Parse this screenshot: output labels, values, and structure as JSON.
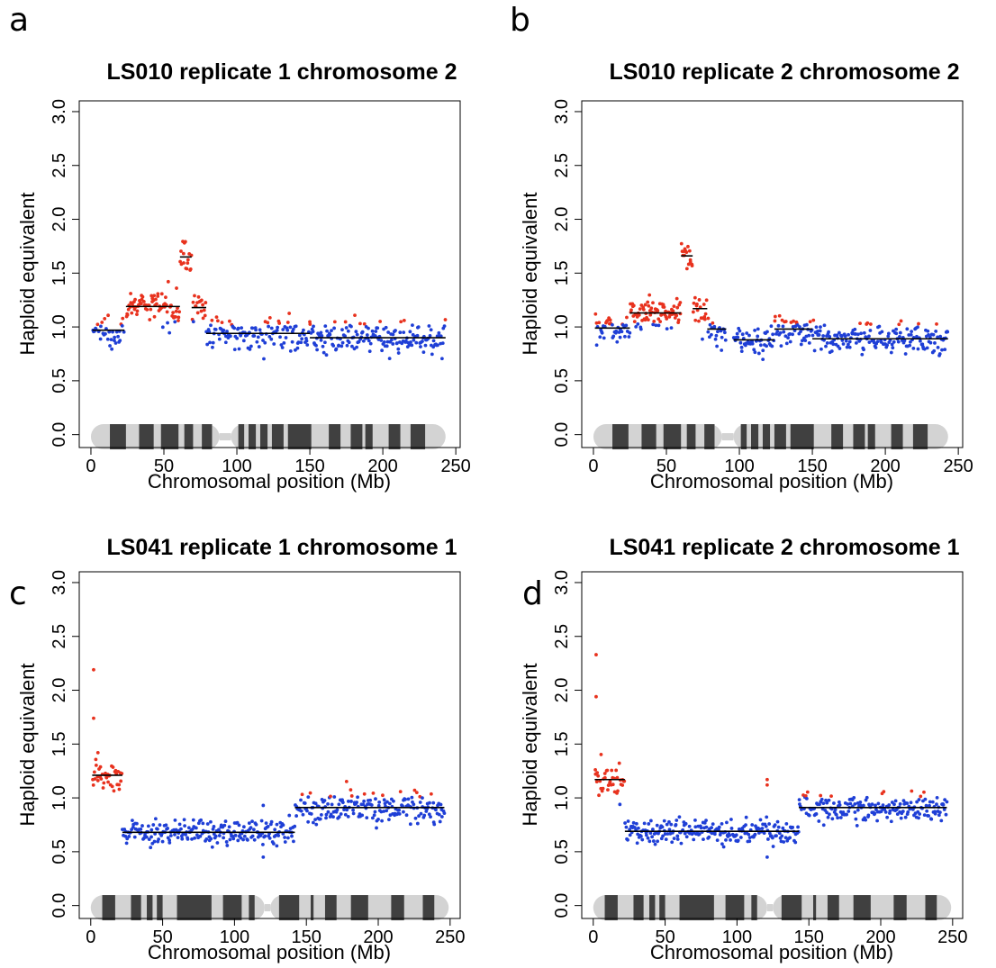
{
  "colors": {
    "gain": "#e8321e",
    "normal": "#1f3fd6",
    "segment": "#000000",
    "band_dark": "#404040",
    "band_light": "#d3d3d3"
  },
  "chart_data": [
    {
      "panel": "a",
      "type": "scatter",
      "title": "LS010 replicate 1 chromosome 2",
      "xlabel": "Chromosomal position (Mb)",
      "ylabel": "Haploid equivalent",
      "xticks": [
        0,
        50,
        100,
        150,
        200,
        250
      ],
      "yticks": [
        "0.0",
        "0.5",
        "1.0",
        "1.5",
        "2.0",
        "2.5",
        "3.0"
      ],
      "xlim": [
        -8,
        253
      ],
      "ylim": [
        -0.12,
        3.1
      ],
      "chrom_length": 243,
      "centromere": [
        88,
        96
      ],
      "bands": [
        [
          13,
          24
        ],
        [
          33,
          43
        ],
        [
          48,
          60
        ],
        [
          64,
          70
        ],
        [
          76,
          83
        ],
        [
          101,
          105
        ],
        [
          108,
          113
        ],
        [
          116,
          121
        ],
        [
          124,
          132
        ],
        [
          135,
          151
        ],
        [
          163,
          171
        ],
        [
          178,
          186
        ],
        [
          188,
          193
        ],
        [
          204,
          212
        ],
        [
          219,
          229
        ]
      ],
      "segments": [
        {
          "x0": 1,
          "x1": 23,
          "y": 0.97,
          "points": 35,
          "sd": 0.07,
          "gain_threshold": 1.02
        },
        {
          "x0": 24,
          "x1": 61,
          "y": 1.19,
          "points": 78,
          "sd": 0.07,
          "gain_threshold": 1.05
        },
        {
          "x0": 61,
          "x1": 69,
          "y": 1.65,
          "points": 16,
          "sd": 0.08,
          "gain_threshold": 1.2
        },
        {
          "x0": 69,
          "x1": 79,
          "y": 1.18,
          "points": 18,
          "sd": 0.07,
          "gain_threshold": 1.05
        },
        {
          "x0": 79,
          "x1": 120,
          "y": 0.94,
          "points": 70,
          "sd": 0.07,
          "gain_threshold": 1.02
        },
        {
          "x0": 120,
          "x1": 150,
          "y": 0.94,
          "points": 50,
          "sd": 0.08,
          "gain_threshold": 1.03
        },
        {
          "x0": 150,
          "x1": 243,
          "y": 0.9,
          "points": 170,
          "sd": 0.07,
          "gain_threshold": 1.02
        }
      ]
    },
    {
      "panel": "b",
      "type": "scatter",
      "title": "LS010 replicate 2 chromosome 2",
      "xlabel": "Chromosomal position (Mb)",
      "ylabel": "Haploid equivalent",
      "xticks": [
        0,
        50,
        100,
        150,
        200,
        250
      ],
      "yticks": [
        "0.0",
        "0.5",
        "1.0",
        "1.5",
        "2.0",
        "2.5",
        "3.0"
      ],
      "xlim": [
        -8,
        253
      ],
      "ylim": [
        -0.12,
        3.1
      ],
      "chrom_length": 243,
      "centromere": [
        88,
        96
      ],
      "bands": [
        [
          13,
          24
        ],
        [
          33,
          43
        ],
        [
          48,
          60
        ],
        [
          64,
          70
        ],
        [
          76,
          83
        ],
        [
          101,
          105
        ],
        [
          108,
          113
        ],
        [
          116,
          121
        ],
        [
          124,
          132
        ],
        [
          135,
          151
        ],
        [
          163,
          171
        ],
        [
          178,
          186
        ],
        [
          188,
          193
        ],
        [
          204,
          212
        ],
        [
          219,
          229
        ]
      ],
      "segments": [
        {
          "x0": 1,
          "x1": 25,
          "y": 0.99,
          "points": 40,
          "sd": 0.08,
          "gain_threshold": 1.02
        },
        {
          "x0": 25,
          "x1": 60,
          "y": 1.13,
          "points": 80,
          "sd": 0.07,
          "gain_threshold": 1.03
        },
        {
          "x0": 60,
          "x1": 68,
          "y": 1.66,
          "points": 16,
          "sd": 0.12,
          "gain_threshold": 1.2
        },
        {
          "x0": 68,
          "x1": 78,
          "y": 1.17,
          "points": 18,
          "sd": 0.08,
          "gain_threshold": 1.05
        },
        {
          "x0": 78,
          "x1": 91,
          "y": 0.98,
          "points": 22,
          "sd": 0.06,
          "gain_threshold": 1.02
        },
        {
          "x0": 96,
          "x1": 124,
          "y": 0.88,
          "points": 50,
          "sd": 0.07,
          "gain_threshold": 1.02
        },
        {
          "x0": 124,
          "x1": 150,
          "y": 0.98,
          "points": 46,
          "sd": 0.07,
          "gain_threshold": 1.02
        },
        {
          "x0": 150,
          "x1": 243,
          "y": 0.89,
          "points": 170,
          "sd": 0.07,
          "gain_threshold": 1.02
        }
      ]
    },
    {
      "panel": "c",
      "type": "scatter",
      "title": "LS041 replicate 1 chromosome 1",
      "xlabel": "Chromosomal position (Mb)",
      "ylabel": "Haploid equivalent",
      "xticks": [
        0,
        50,
        100,
        150,
        200,
        250
      ],
      "yticks": [
        "0.0",
        "0.5",
        "1.0",
        "1.5",
        "2.0",
        "2.5",
        "3.0"
      ],
      "xlim": [
        -8,
        257
      ],
      "ylim": [
        -0.12,
        3.1
      ],
      "chrom_length": 249,
      "centromere": [
        121,
        125
      ],
      "bands": [
        [
          8,
          17
        ],
        [
          28,
          35
        ],
        [
          39,
          43
        ],
        [
          46,
          50
        ],
        [
          60,
          84
        ],
        [
          92,
          105
        ],
        [
          110,
          114
        ],
        [
          131,
          145
        ],
        [
          153,
          155
        ],
        [
          163,
          171
        ],
        [
          181,
          193
        ],
        [
          209,
          218
        ],
        [
          231,
          239
        ]
      ],
      "segments": [
        {
          "x0": 1,
          "x1": 22,
          "y": 1.21,
          "points": 38,
          "sd": 0.07,
          "gain_threshold": 1.02,
          "extras": [
            [
              2,
              2.19
            ],
            [
              2,
              1.74
            ],
            [
              5,
              1.42
            ]
          ]
        },
        {
          "x0": 22,
          "x1": 142,
          "y": 0.68,
          "points": 220,
          "sd": 0.06,
          "gain_threshold": 2.0,
          "extras": [
            [
              120,
              0.45
            ],
            [
              120,
              0.93
            ]
          ]
        },
        {
          "x0": 142,
          "x1": 246,
          "y": 0.91,
          "points": 190,
          "sd": 0.07,
          "gain_threshold": 1.01
        }
      ]
    },
    {
      "panel": "d",
      "type": "scatter",
      "title": "LS041 replicate 2 chromosome 1",
      "xlabel": "Chromosomal position (Mb)",
      "ylabel": "Haploid equivalent",
      "xticks": [
        0,
        50,
        100,
        150,
        200,
        250
      ],
      "yticks": [
        "0.0",
        "0.5",
        "1.0",
        "1.5",
        "2.0",
        "2.5",
        "3.0"
      ],
      "xlim": [
        -8,
        257
      ],
      "ylim": [
        -0.12,
        3.1
      ],
      "chrom_length": 249,
      "centromere": [
        121,
        125
      ],
      "bands": [
        [
          8,
          17
        ],
        [
          28,
          35
        ],
        [
          39,
          43
        ],
        [
          46,
          50
        ],
        [
          60,
          84
        ],
        [
          92,
          105
        ],
        [
          110,
          114
        ],
        [
          131,
          145
        ],
        [
          153,
          155
        ],
        [
          163,
          171
        ],
        [
          181,
          193
        ],
        [
          209,
          218
        ],
        [
          231,
          239
        ]
      ],
      "segments": [
        {
          "x0": 1,
          "x1": 22,
          "y": 1.17,
          "points": 38,
          "sd": 0.09,
          "gain_threshold": 1.02,
          "extras": [
            [
              2,
              2.33
            ],
            [
              2,
              1.94
            ]
          ]
        },
        {
          "x0": 22,
          "x1": 143,
          "y": 0.69,
          "points": 220,
          "sd": 0.06,
          "gain_threshold": 2.0,
          "extras": [
            [
              121,
              1.17
            ],
            [
              121,
              1.12
            ],
            [
              121,
              0.45
            ]
          ]
        },
        {
          "x0": 143,
          "x1": 246,
          "y": 0.91,
          "points": 190,
          "sd": 0.07,
          "gain_threshold": 1.01
        }
      ]
    }
  ]
}
